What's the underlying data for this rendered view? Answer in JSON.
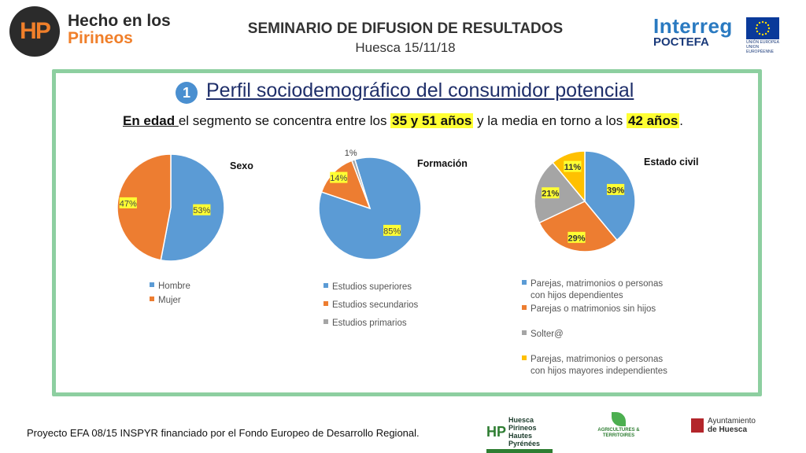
{
  "header": {
    "brand_hp": "HP",
    "brand_line1": "Hecho en los",
    "brand_line2": "Pirineos",
    "title": "SEMINARIO DE DIFUSION DE RESULTADOS",
    "subtitle": "Huesca 15/11/18",
    "interreg_line1": "Interreg",
    "interreg_line2": "POCTEFA",
    "eu_caption": "UNIÓN EUROPEA UNION EUROPÉENNE"
  },
  "slide": {
    "number": "1",
    "title": "Perfil sociodemográfico del consumidor potencial",
    "summary": {
      "part1": "En edad ",
      "part2": "el segmento se concentra entre los ",
      "hl1": "35 y 51 años",
      "part3": " y la media en torno a los ",
      "hl2": "42 años",
      "part4": "."
    }
  },
  "colors": {
    "blue": "#5b9bd5",
    "orange": "#ed7d31",
    "gray": "#a5a5a5",
    "yellow": "#ffc000",
    "frame": "#8dcfa0",
    "highlight": "#ffff33"
  },
  "chart_data": [
    {
      "type": "pie",
      "title": "Sexo",
      "labels": [
        "Hombre",
        "Mujer"
      ],
      "values": [
        53,
        47
      ],
      "value_labels": [
        "53%",
        "47%"
      ],
      "legend_position": "bottom"
    },
    {
      "type": "pie",
      "title": "Formación",
      "labels": [
        "Estudios superiores",
        "Estudios secundarios",
        "Estudios primarios"
      ],
      "values": [
        85,
        14,
        1
      ],
      "value_labels": [
        "85%",
        "14%",
        "1%"
      ],
      "legend_position": "bottom"
    },
    {
      "type": "pie",
      "title": "Estado civil",
      "labels": [
        "Parejas, matrimonios o personas con hijos dependientes",
        "Parejas o matrimonios sin hijos",
        "Solter@",
        "Parejas, matrimonios o personas con hijos mayores independientes"
      ],
      "values": [
        39,
        29,
        21,
        11
      ],
      "value_labels": [
        "39%",
        "29%",
        "21%",
        "11%"
      ],
      "legend_position": "bottom"
    }
  ],
  "footer": {
    "text": "Proyecto EFA 08/15 INSPYR financiado por el Fondo Europeo de Desarrollo Regional.",
    "logo1": "Huesca Pirineos Hautes Pyrénées",
    "logo2": "AGRICULTURES & TERRITOIRES",
    "logo3a": "Ayuntamiento",
    "logo3b": "de Huesca"
  }
}
